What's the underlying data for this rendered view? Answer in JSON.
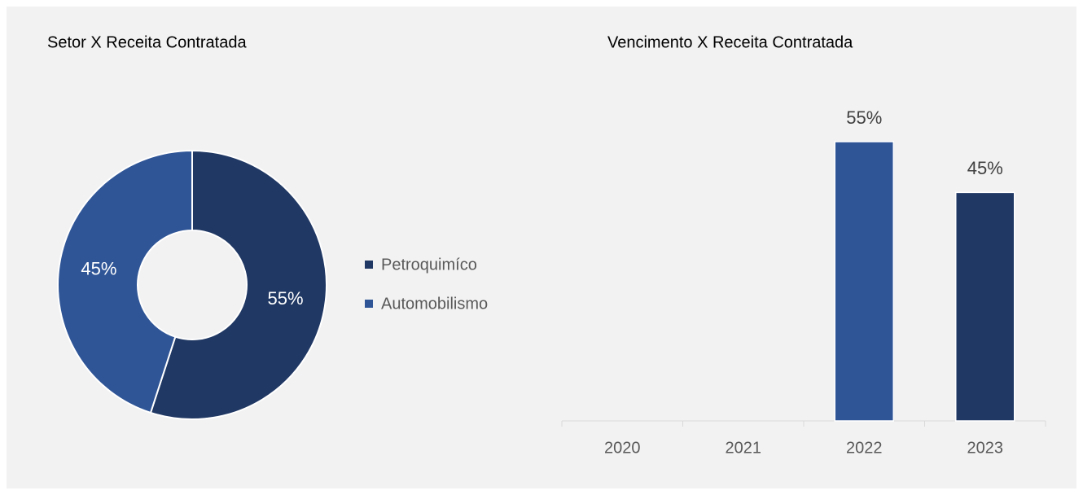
{
  "chart_data": [
    {
      "type": "donut",
      "title": "Setor X Receita Contratada",
      "categories": [
        "Petroquimíco",
        "Automobilismo"
      ],
      "values": [
        55,
        45
      ],
      "value_labels": [
        "55%",
        "45%"
      ],
      "colors": [
        "#203864",
        "#2f5597"
      ]
    },
    {
      "type": "bar",
      "title": "Vencimento X Receita Contratada",
      "categories": [
        "2020",
        "2021",
        "2022",
        "2023"
      ],
      "values": [
        null,
        null,
        55,
        45
      ],
      "value_labels": [
        null,
        null,
        "55%",
        "45%"
      ],
      "colors": [
        "#2f5597",
        "#2f5597",
        "#2f5597",
        "#203864"
      ]
    }
  ]
}
